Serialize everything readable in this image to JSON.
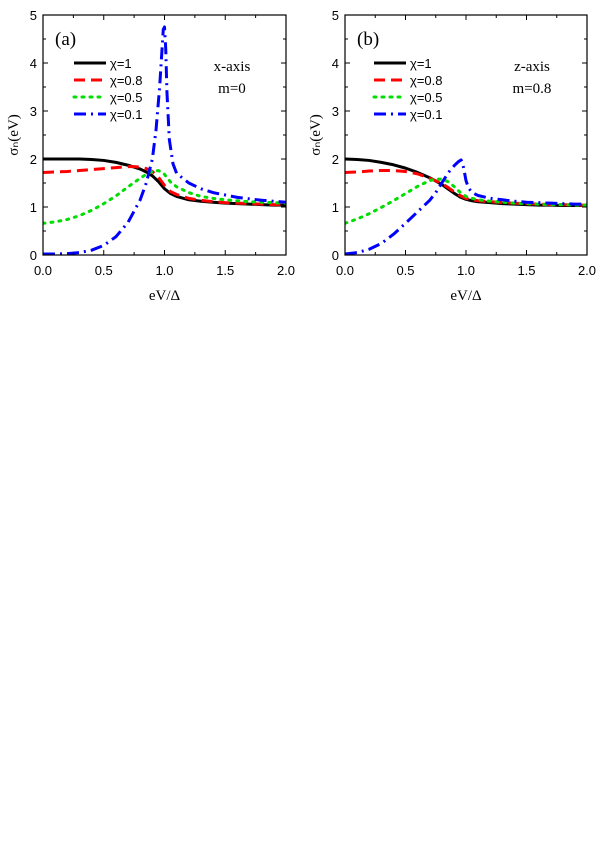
{
  "chart_data": [
    {
      "type": "line",
      "panel_label": "(a)",
      "annotations": [
        "x-axis",
        "m=0"
      ],
      "xlabel": "eV/Δ",
      "ylabel": "σₙ(eV)",
      "xlim": [
        0,
        2
      ],
      "ylim": [
        0,
        5
      ],
      "xticks": [
        "0.0",
        "0.5",
        "1.0",
        "1.5",
        "2.0"
      ],
      "yticks": [
        "0",
        "1",
        "2",
        "3",
        "4",
        "5"
      ],
      "legend_position": "top-left",
      "series": [
        {
          "name": "χ=1",
          "color": "#000000",
          "style": "solid",
          "x": [
            0.0,
            0.1,
            0.2,
            0.3,
            0.4,
            0.5,
            0.6,
            0.7,
            0.8,
            0.85,
            0.9,
            0.95,
            1.0,
            1.05,
            1.1,
            1.2,
            1.3,
            1.4,
            1.5,
            1.6,
            1.7,
            1.8,
            1.9,
            2.0
          ],
          "y": [
            2.0,
            2.0,
            2.0,
            2.0,
            1.99,
            1.97,
            1.93,
            1.87,
            1.79,
            1.73,
            1.65,
            1.53,
            1.38,
            1.28,
            1.22,
            1.15,
            1.12,
            1.1,
            1.08,
            1.07,
            1.06,
            1.05,
            1.04,
            1.04
          ]
        },
        {
          "name": "χ=0.8",
          "color": "#ff0000",
          "style": "dash",
          "x": [
            0.0,
            0.1,
            0.2,
            0.3,
            0.4,
            0.5,
            0.6,
            0.7,
            0.75,
            0.8,
            0.85,
            0.9,
            0.95,
            1.0,
            1.05,
            1.1,
            1.2,
            1.3,
            1.4,
            1.5,
            1.6,
            1.7,
            1.8,
            1.9,
            2.0
          ],
          "y": [
            1.72,
            1.73,
            1.74,
            1.76,
            1.78,
            1.8,
            1.82,
            1.84,
            1.84,
            1.83,
            1.8,
            1.74,
            1.62,
            1.45,
            1.32,
            1.26,
            1.18,
            1.14,
            1.11,
            1.09,
            1.08,
            1.07,
            1.06,
            1.05,
            1.05
          ]
        },
        {
          "name": "χ=0.5",
          "color": "#00dd00",
          "style": "dot",
          "x": [
            0.0,
            0.1,
            0.2,
            0.3,
            0.4,
            0.5,
            0.6,
            0.7,
            0.8,
            0.85,
            0.9,
            0.95,
            1.0,
            1.05,
            1.1,
            1.2,
            1.3,
            1.4,
            1.5,
            1.6,
            1.7,
            1.8,
            1.9,
            2.0
          ],
          "y": [
            0.66,
            0.69,
            0.74,
            0.82,
            0.93,
            1.07,
            1.23,
            1.42,
            1.6,
            1.68,
            1.74,
            1.76,
            1.68,
            1.52,
            1.42,
            1.3,
            1.22,
            1.18,
            1.15,
            1.13,
            1.11,
            1.1,
            1.09,
            1.08
          ]
        },
        {
          "name": "χ=0.1",
          "color": "#0000ff",
          "style": "dashdot",
          "x": [
            0.0,
            0.1,
            0.2,
            0.3,
            0.4,
            0.5,
            0.6,
            0.7,
            0.8,
            0.85,
            0.9,
            0.93,
            0.96,
            0.98,
            0.99,
            1.0,
            1.01,
            1.02,
            1.04,
            1.07,
            1.1,
            1.2,
            1.3,
            1.4,
            1.5,
            1.6,
            1.7,
            1.8,
            1.9,
            2.0
          ],
          "y": [
            0.02,
            0.02,
            0.03,
            0.05,
            0.1,
            0.2,
            0.38,
            0.68,
            1.15,
            1.5,
            2.0,
            2.6,
            3.5,
            4.3,
            4.7,
            4.75,
            4.3,
            3.4,
            2.4,
            1.9,
            1.7,
            1.5,
            1.38,
            1.3,
            1.25,
            1.2,
            1.17,
            1.14,
            1.12,
            1.1
          ]
        }
      ]
    },
    {
      "type": "line",
      "panel_label": "(b)",
      "annotations": [
        "z-axis",
        "m=0.8"
      ],
      "xlabel": "eV/Δ",
      "ylabel": "σₙ(eV)",
      "xlim": [
        0,
        2
      ],
      "ylim": [
        0,
        5
      ],
      "xticks": [
        "0.0",
        "0.5",
        "1.0",
        "1.5",
        "2.0"
      ],
      "yticks": [
        "0",
        "1",
        "2",
        "3",
        "4",
        "5"
      ],
      "legend_position": "top-left",
      "series": [
        {
          "name": "χ=1",
          "color": "#000000",
          "style": "solid",
          "x": [
            0.0,
            0.1,
            0.2,
            0.3,
            0.4,
            0.5,
            0.6,
            0.7,
            0.8,
            0.85,
            0.9,
            0.95,
            1.0,
            1.05,
            1.1,
            1.2,
            1.3,
            1.4,
            1.5,
            1.6,
            1.7,
            1.8,
            1.9,
            2.0
          ],
          "y": [
            2.0,
            1.99,
            1.97,
            1.93,
            1.88,
            1.81,
            1.72,
            1.61,
            1.47,
            1.38,
            1.29,
            1.21,
            1.16,
            1.13,
            1.11,
            1.09,
            1.07,
            1.06,
            1.05,
            1.04,
            1.04,
            1.03,
            1.03,
            1.03
          ]
        },
        {
          "name": "χ=0.8",
          "color": "#ff0000",
          "style": "dash",
          "x": [
            0.0,
            0.1,
            0.2,
            0.3,
            0.4,
            0.5,
            0.6,
            0.7,
            0.8,
            0.85,
            0.9,
            0.95,
            1.0,
            1.05,
            1.1,
            1.2,
            1.3,
            1.4,
            1.5,
            1.6,
            1.7,
            1.8,
            1.9,
            2.0
          ],
          "y": [
            1.72,
            1.73,
            1.75,
            1.76,
            1.76,
            1.74,
            1.69,
            1.6,
            1.49,
            1.41,
            1.32,
            1.24,
            1.18,
            1.15,
            1.13,
            1.11,
            1.09,
            1.08,
            1.07,
            1.06,
            1.05,
            1.05,
            1.04,
            1.04
          ]
        },
        {
          "name": "χ=0.5",
          "color": "#00dd00",
          "style": "dot",
          "x": [
            0.0,
            0.1,
            0.2,
            0.3,
            0.4,
            0.5,
            0.6,
            0.7,
            0.75,
            0.8,
            0.85,
            0.9,
            0.95,
            1.0,
            1.05,
            1.1,
            1.2,
            1.3,
            1.4,
            1.5,
            1.6,
            1.7,
            1.8,
            1.9,
            2.0
          ],
          "y": [
            0.66,
            0.75,
            0.86,
            0.99,
            1.13,
            1.28,
            1.43,
            1.55,
            1.58,
            1.58,
            1.53,
            1.43,
            1.31,
            1.22,
            1.18,
            1.15,
            1.12,
            1.1,
            1.08,
            1.07,
            1.06,
            1.05,
            1.05,
            1.04,
            1.04
          ]
        },
        {
          "name": "χ=0.1",
          "color": "#0000ff",
          "style": "dashdot",
          "x": [
            0.0,
            0.1,
            0.2,
            0.3,
            0.4,
            0.5,
            0.6,
            0.7,
            0.75,
            0.8,
            0.85,
            0.88,
            0.91,
            0.94,
            0.96,
            0.98,
            1.0,
            1.02,
            1.05,
            1.1,
            1.2,
            1.3,
            1.4,
            1.5,
            1.6,
            1.7,
            1.8,
            1.9,
            2.0
          ],
          "y": [
            0.02,
            0.05,
            0.12,
            0.24,
            0.43,
            0.66,
            0.9,
            1.14,
            1.3,
            1.5,
            1.7,
            1.8,
            1.88,
            1.95,
            1.98,
            1.82,
            1.55,
            1.4,
            1.3,
            1.24,
            1.18,
            1.15,
            1.12,
            1.1,
            1.09,
            1.08,
            1.07,
            1.06,
            1.06
          ]
        }
      ]
    }
  ]
}
